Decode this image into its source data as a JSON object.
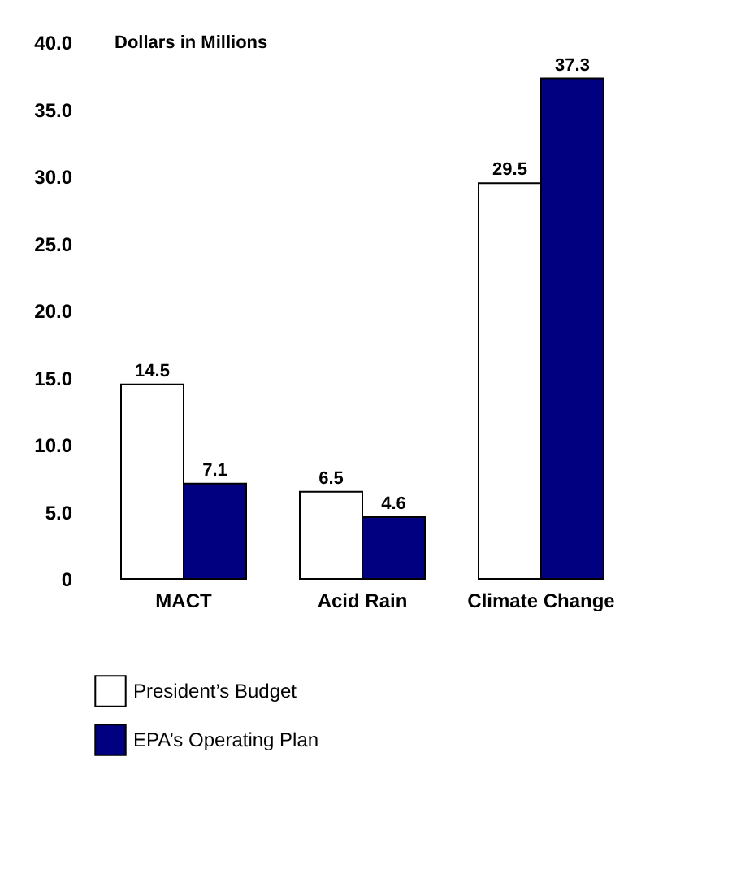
{
  "chart_data": {
    "type": "bar",
    "ylabel": "Dollars in Millions",
    "categories": [
      "MACT",
      "Acid Rain",
      "Climate Change"
    ],
    "series": [
      {
        "name": "President’s Budget",
        "color": "#ffffff",
        "values": [
          14.5,
          6.5,
          29.5
        ]
      },
      {
        "name": "EPA’s Operating Plan",
        "color": "#000080",
        "values": [
          7.1,
          4.6,
          37.3
        ]
      }
    ],
    "ylim": [
      0,
      40
    ],
    "yticks": [
      0,
      {
        "value": 5,
        "label": "5.0"
      },
      {
        "value": 10,
        "label": "10.0"
      },
      {
        "value": 15,
        "label": "15.0"
      },
      {
        "value": 20,
        "label": "20.0"
      },
      {
        "value": 25,
        "label": "25.0"
      },
      {
        "value": 30,
        "label": "30.0"
      },
      {
        "value": 35,
        "label": "35.0"
      },
      {
        "value": 40,
        "label": "40.0"
      }
    ],
    "data_labels": true,
    "legend": "bottom",
    "grid": false
  }
}
